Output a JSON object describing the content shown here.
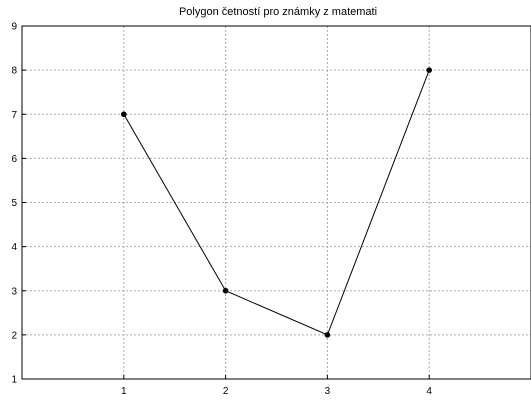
{
  "chart_data": {
    "type": "line",
    "title": "Polygon četností pro známky z matemati",
    "x": [
      1,
      2,
      3,
      4
    ],
    "values": [
      7,
      3,
      2,
      8
    ],
    "xlim": [
      0,
      5
    ],
    "ylim": [
      1,
      9
    ],
    "xticks": [
      "1",
      "2",
      "3",
      "4"
    ],
    "yticks": [
      "1",
      "2",
      "3",
      "4",
      "5",
      "6",
      "7",
      "8",
      "9"
    ],
    "grid": true,
    "markers": "filled-circle",
    "colors": {
      "line": "#000000",
      "grid": "#a9a9a9"
    }
  }
}
